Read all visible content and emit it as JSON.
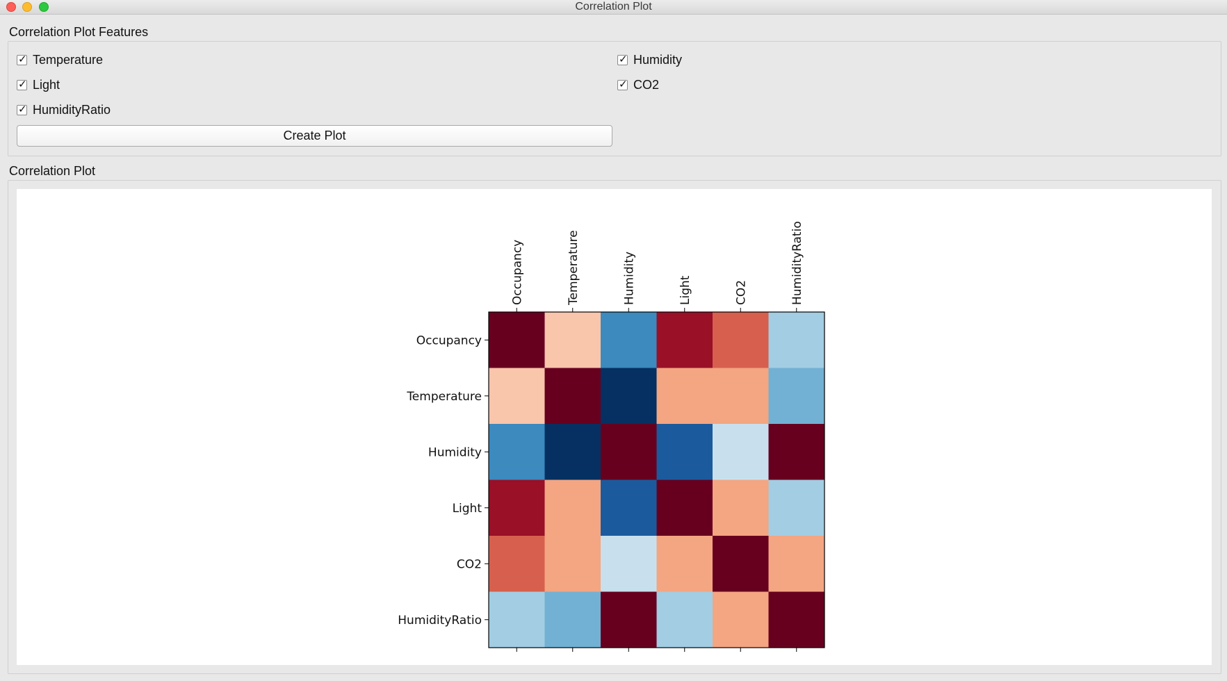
{
  "window": {
    "title": "Correlation Plot"
  },
  "features_group": {
    "title": "Correlation Plot Features",
    "checkboxes": [
      {
        "label": "Temperature",
        "checked": true
      },
      {
        "label": "Humidity",
        "checked": true
      },
      {
        "label": "Light",
        "checked": true
      },
      {
        "label": "CO2",
        "checked": true
      },
      {
        "label": "HumidityRatio",
        "checked": true
      }
    ],
    "create_button_label": "Create Plot"
  },
  "plot_group": {
    "title": "Correlation Plot"
  },
  "chart_data": {
    "type": "heatmap",
    "title": "",
    "xlabel": "",
    "ylabel": "",
    "x_tick_labels": [
      "Occupancy",
      "Temperature",
      "Humidity",
      "Light",
      "CO2",
      "HumidityRatio"
    ],
    "y_tick_labels": [
      "Occupancy",
      "Temperature",
      "Humidity",
      "Light",
      "CO2",
      "HumidityRatio"
    ],
    "colormap": "RdBu_r",
    "value_range": [
      -1,
      1
    ],
    "x_ticks_position": "top",
    "matrix": [
      [
        1.0,
        0.2,
        -0.55,
        0.9,
        0.6,
        -0.2
      ],
      [
        0.2,
        1.0,
        -1.0,
        0.35,
        0.35,
        -0.35
      ],
      [
        -0.55,
        -1.0,
        1.0,
        -0.8,
        -0.08,
        1.0
      ],
      [
        0.9,
        0.35,
        -0.8,
        1.0,
        0.35,
        -0.2
      ],
      [
        0.6,
        0.35,
        -0.08,
        0.35,
        1.0,
        0.35
      ],
      [
        -0.2,
        -0.35,
        1.0,
        -0.2,
        0.35,
        1.0
      ]
    ]
  }
}
